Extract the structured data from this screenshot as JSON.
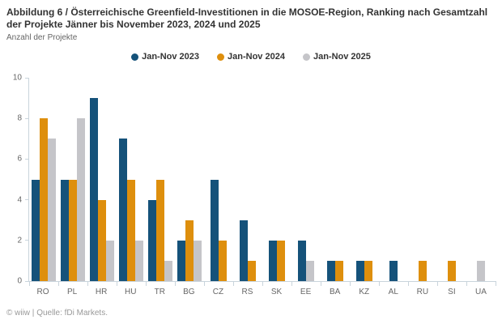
{
  "header": {
    "title": "Abbildung 6 / Österreichische Greenfield-Investitionen in die MOSOE-Region, Ranking nach Gesamtzahl der Projekte Jänner bis November 2023, 2024 und 2025",
    "subtitle": "Anzahl der Projekte"
  },
  "chart_data": {
    "type": "bar",
    "title": "Abbildung 6 / Österreichische Greenfield-Investitionen in die MOSOE-Region, Ranking nach Gesamtzahl der Projekte Jänner bis November 2023, 2024 und 2025",
    "ylabel": "Anzahl der Projekte",
    "xlabel": "",
    "categories": [
      "RO",
      "PL",
      "HR",
      "HU",
      "TR",
      "BG",
      "CZ",
      "RS",
      "SK",
      "EE",
      "BA",
      "KZ",
      "AL",
      "RU",
      "SI",
      "UA"
    ],
    "series": [
      {
        "name": "Jan-Nov 2023",
        "color": "#15527A",
        "values": [
          5,
          5,
          9,
          7,
          4,
          2,
          5,
          3,
          2,
          2,
          1,
          1,
          1,
          0,
          0,
          0
        ]
      },
      {
        "name": "Jan-Nov 2024",
        "color": "#DE8F0D",
        "values": [
          8,
          5,
          4,
          5,
          5,
          3,
          2,
          1,
          2,
          0,
          1,
          1,
          0,
          1,
          1,
          0
        ]
      },
      {
        "name": "Jan-Nov 2025",
        "color": "#C5C5C9",
        "values": [
          7,
          8,
          2,
          2,
          1,
          2,
          0,
          0,
          0,
          1,
          0,
          0,
          0,
          0,
          0,
          1
        ]
      }
    ],
    "ylim": [
      0,
      10
    ],
    "yticks": [
      0,
      2,
      4,
      6,
      8,
      10
    ],
    "grid": false,
    "legend_position": "top-center",
    "axis_color": "#c9d4dc"
  },
  "footer": {
    "text": "© wiiw | Quelle: fDi Markets."
  }
}
